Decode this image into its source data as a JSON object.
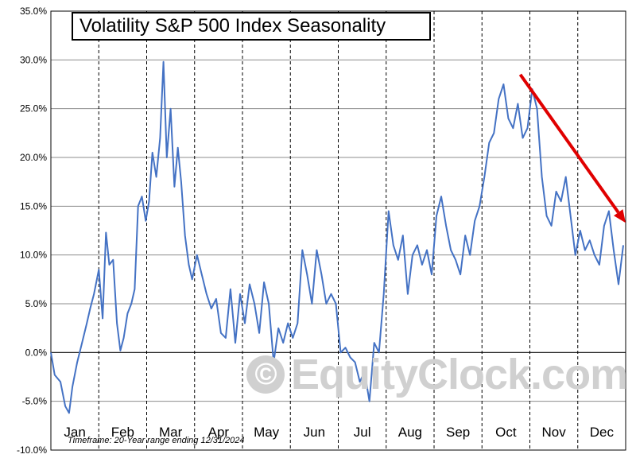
{
  "title": "Volatility S&P 500 Index Seasonality",
  "watermark": "EquityClock.com",
  "watermark_icon": "copyright-icon",
  "timeframe_prefix": "Timeframe:",
  "timeframe_text": "20-Year range ending 12/31/2024",
  "colors": {
    "series": "#4472c4",
    "arrow": "#e00000",
    "grid": "#8c8c8c",
    "zero_line": "#000000"
  },
  "chart_data": {
    "type": "line",
    "title": "Volatility S&P 500 Index Seasonality",
    "xlabel": "",
    "ylabel": "",
    "ylim": [
      -10,
      35
    ],
    "y_ticks": [
      -10,
      -5,
      0,
      5,
      10,
      15,
      20,
      25,
      30,
      35
    ],
    "y_tick_labels": [
      "-10.0%",
      "-5.0%",
      "0.0%",
      "5.0%",
      "10.0%",
      "15.0%",
      "20.0%",
      "25.0%",
      "30.0%",
      "35.0%"
    ],
    "x_categories": [
      "Jan",
      "Feb",
      "Mar",
      "Apr",
      "May",
      "Jun",
      "Jul",
      "Aug",
      "Sep",
      "Oct",
      "Nov",
      "Dec"
    ],
    "x_range": [
      0,
      12
    ],
    "grid": "horizontal solid, vertical dashed month separators",
    "legend": "none",
    "series": [
      {
        "x": [
          0,
          0.08,
          0.2,
          0.3,
          0.38,
          0.45,
          0.55,
          0.65,
          0.75,
          0.82,
          0.9,
          1.0,
          1.08,
          1.15,
          1.22,
          1.3,
          1.38,
          1.45,
          1.52,
          1.6,
          1.68,
          1.75,
          1.82,
          1.9,
          1.98,
          2.05,
          2.12,
          2.2,
          2.28,
          2.35,
          2.42,
          2.5,
          2.58,
          2.65,
          2.72,
          2.8,
          2.88,
          2.95,
          3.05,
          3.15,
          3.25,
          3.35,
          3.45,
          3.55,
          3.65,
          3.75,
          3.85,
          3.95,
          4.05,
          4.15,
          4.25,
          4.35,
          4.45,
          4.55,
          4.65,
          4.75,
          4.85,
          4.95,
          5.05,
          5.15,
          5.25,
          5.35,
          5.45,
          5.55,
          5.65,
          5.75,
          5.85,
          5.95,
          6.05,
          6.15,
          6.25,
          6.35,
          6.45,
          6.55,
          6.65,
          6.75,
          6.85,
          6.95,
          7.05,
          7.15,
          7.25,
          7.35,
          7.45,
          7.55,
          7.65,
          7.75,
          7.85,
          7.95,
          8.05,
          8.15,
          8.25,
          8.35,
          8.45,
          8.55,
          8.65,
          8.75,
          8.85,
          8.95,
          9.05,
          9.15,
          9.25,
          9.35,
          9.45,
          9.55,
          9.65,
          9.75,
          9.85,
          9.95,
          10.05,
          10.15,
          10.25,
          10.35,
          10.45,
          10.55,
          10.65,
          10.75,
          10.85,
          10.95,
          11.05,
          11.15,
          11.25,
          11.35,
          11.45,
          11.55,
          11.65,
          11.75,
          11.85,
          11.95
        ],
        "values": [
          0,
          -2.3,
          -3.0,
          -5.5,
          -6.2,
          -3.5,
          -1.0,
          1.0,
          3.0,
          4.5,
          6.0,
          8.5,
          3.5,
          12.3,
          9.0,
          9.5,
          3.0,
          0.2,
          1.5,
          4.0,
          5.0,
          6.5,
          15.0,
          16.0,
          13.5,
          15.5,
          20.5,
          18.0,
          22.0,
          29.8,
          20.0,
          25.0,
          17.0,
          21.0,
          17.5,
          12.0,
          9.0,
          7.5,
          10.0,
          8.0,
          6.0,
          4.5,
          5.5,
          2.0,
          1.5,
          6.5,
          1.0,
          6.0,
          3.0,
          7.0,
          5.0,
          2.0,
          7.2,
          5.0,
          -1.0,
          2.5,
          1.0,
          3.0,
          1.5,
          3.0,
          10.5,
          8.0,
          5.0,
          10.5,
          8.0,
          5.0,
          6.0,
          5.0,
          0.0,
          0.5,
          -0.5,
          -1.0,
          -3.0,
          -2.0,
          -5.0,
          1.0,
          0.0,
          6.0,
          14.5,
          11.0,
          9.5,
          12.0,
          6.0,
          10.0,
          11.0,
          9.0,
          10.5,
          8.0,
          14.0,
          16.0,
          13.0,
          10.5,
          9.5,
          8.0,
          12.0,
          10.0,
          13.5,
          15.0,
          18.0,
          21.5,
          22.5,
          26.0,
          27.5,
          24.0,
          23.0,
          25.5,
          22.0,
          23.0,
          27.0,
          25.0,
          18.0,
          14.0,
          13.0,
          16.5,
          15.5,
          18.0,
          14.0,
          10.0,
          12.5,
          10.5,
          11.5,
          10.0,
          9.0,
          13.0,
          14.5,
          10.5,
          7.0,
          11.0
        ]
      }
    ],
    "annotations": [
      {
        "type": "arrow",
        "from": [
          9.8,
          28.5
        ],
        "to": [
          12.0,
          13.3
        ]
      }
    ]
  }
}
